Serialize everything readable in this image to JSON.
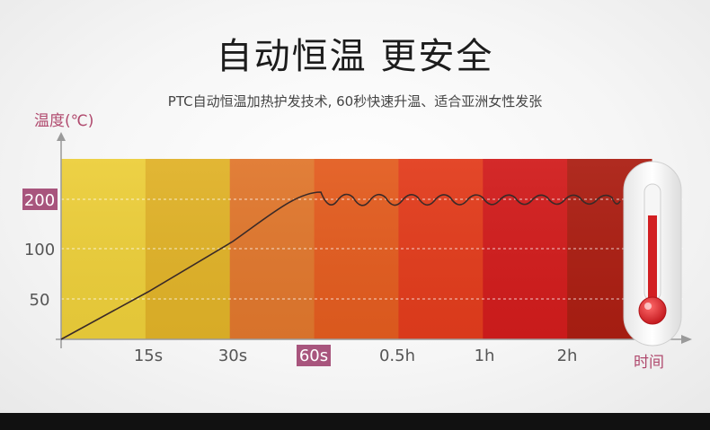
{
  "title": "自动恒温 更安全",
  "subtitle": "PTC自动恒温加热护发技术, 60秒快速升温、适合亚洲女性发张",
  "colors": {
    "highlight": "#a8557d",
    "axis_label": "#b04a6e",
    "curve": "#3a2a28",
    "thermometer": "#d21f22"
  },
  "chart_data": {
    "type": "line",
    "title": "",
    "xlabel": "时间",
    "ylabel": "温度(℃)",
    "x_ticks": [
      "15s",
      "30s",
      "60s",
      "0.5h",
      "1h",
      "2h"
    ],
    "x_highlight": "60s",
    "y_ticks": [
      50,
      100,
      200
    ],
    "y_highlight": 200,
    "band_colors": [
      "#ecce3a",
      "#e0b228",
      "#e0772d",
      "#e35c1f",
      "#e23c1c",
      "#d11c1c",
      "#ab1e12"
    ],
    "grid": "dashed",
    "series": [
      {
        "x": [
          "0s",
          "15s",
          "30s",
          "60s",
          "0.5h",
          "1h",
          "2h"
        ],
        "y": [
          0,
          50,
          100,
          200,
          200,
          200,
          200
        ]
      }
    ]
  }
}
